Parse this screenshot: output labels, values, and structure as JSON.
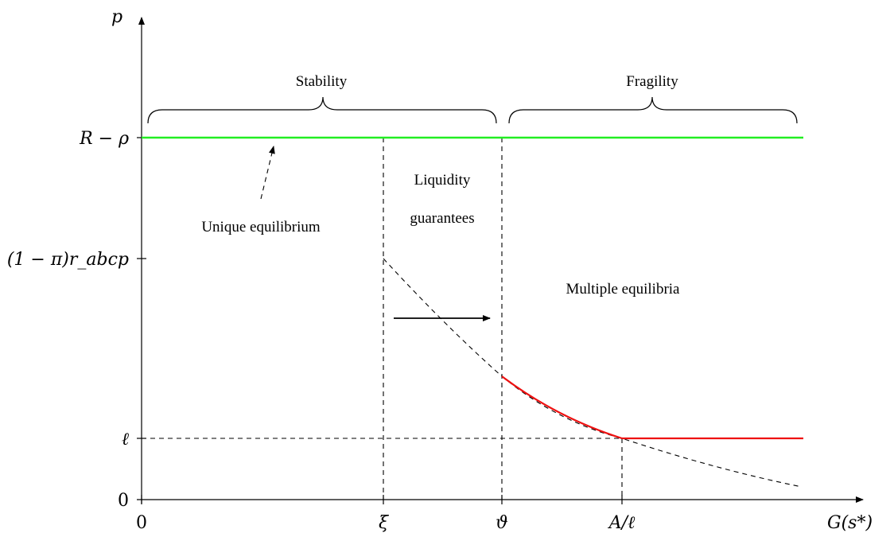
{
  "axes": {
    "y_label": "p",
    "x_label": "G(s*)",
    "y_ticks": [
      "R − ρ",
      "(1 − π)r_abcp",
      "ℓ",
      "0"
    ],
    "x_ticks": [
      "0",
      "ξ",
      "ϑ",
      "A/ℓ"
    ]
  },
  "regions": {
    "stability": "Stability",
    "fragility": "Fragility",
    "liquidity_line1": "Liquidity",
    "liquidity_line2": "guarantees",
    "unique": "Unique equilibrium",
    "multiple": "Multiple equilibria"
  },
  "colors": {
    "green_line": "#22ee22",
    "red_curve": "#ee1111",
    "axis": "#000000"
  }
}
